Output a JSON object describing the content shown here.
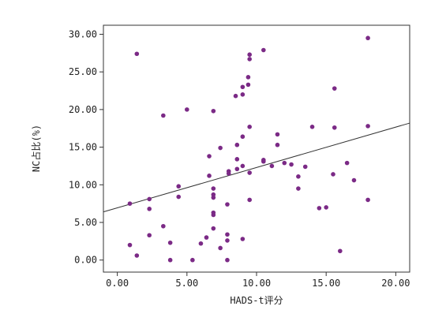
{
  "chart_data": {
    "type": "scatter",
    "title": "",
    "xlabel": "HADS-t评分",
    "ylabel": "NC占比(%)",
    "xlim": [
      -1.0,
      21.0
    ],
    "ylim": [
      -1.6,
      31.2
    ],
    "x_ticks": [
      0,
      5,
      10,
      15,
      20
    ],
    "x_tick_labels": [
      "0.00",
      "5.00",
      "10.00",
      "15.00",
      "20.00"
    ],
    "y_ticks": [
      0,
      5,
      10,
      15,
      20,
      25,
      30
    ],
    "y_tick_labels": [
      "0.00",
      "5.00",
      "10.00",
      "15.00",
      "20.00",
      "25.00",
      "30.00"
    ],
    "grid": false,
    "marker_color": "#7b2a86",
    "line_color": "#333333",
    "fit_line": {
      "x": [
        -1.0,
        21.0
      ],
      "y": [
        6.4,
        18.2
      ]
    },
    "points": [
      {
        "x": 1.4,
        "y": 27.4
      },
      {
        "x": 3.3,
        "y": 19.2
      },
      {
        "x": 5.0,
        "y": 20.0
      },
      {
        "x": 6.9,
        "y": 19.8
      },
      {
        "x": 10.5,
        "y": 27.9
      },
      {
        "x": 9.5,
        "y": 27.3
      },
      {
        "x": 9.5,
        "y": 26.7
      },
      {
        "x": 9.4,
        "y": 24.3
      },
      {
        "x": 9.4,
        "y": 23.3
      },
      {
        "x": 9.0,
        "y": 23.0
      },
      {
        "x": 9.0,
        "y": 22.0
      },
      {
        "x": 8.5,
        "y": 21.8
      },
      {
        "x": 18.0,
        "y": 29.5
      },
      {
        "x": 15.6,
        "y": 22.8
      },
      {
        "x": 9.5,
        "y": 17.7
      },
      {
        "x": 9.0,
        "y": 16.4
      },
      {
        "x": 7.4,
        "y": 14.9
      },
      {
        "x": 8.6,
        "y": 15.3
      },
      {
        "x": 6.6,
        "y": 13.8
      },
      {
        "x": 8.6,
        "y": 13.4
      },
      {
        "x": 9.0,
        "y": 12.5
      },
      {
        "x": 8.6,
        "y": 12.1
      },
      {
        "x": 8.0,
        "y": 11.8
      },
      {
        "x": 8.0,
        "y": 11.5
      },
      {
        "x": 9.5,
        "y": 11.6
      },
      {
        "x": 6.6,
        "y": 11.2
      },
      {
        "x": 10.5,
        "y": 13.3
      },
      {
        "x": 10.5,
        "y": 13.1
      },
      {
        "x": 11.1,
        "y": 12.5
      },
      {
        "x": 11.5,
        "y": 16.7
      },
      {
        "x": 11.5,
        "y": 15.3
      },
      {
        "x": 12.0,
        "y": 12.9
      },
      {
        "x": 12.5,
        "y": 12.7
      },
      {
        "x": 13.0,
        "y": 11.1
      },
      {
        "x": 13.0,
        "y": 9.5
      },
      {
        "x": 13.5,
        "y": 12.4
      },
      {
        "x": 14.0,
        "y": 17.7
      },
      {
        "x": 15.6,
        "y": 17.6
      },
      {
        "x": 15.5,
        "y": 11.4
      },
      {
        "x": 16.5,
        "y": 12.9
      },
      {
        "x": 17.0,
        "y": 10.6
      },
      {
        "x": 18.0,
        "y": 17.8
      },
      {
        "x": 18.0,
        "y": 8.0
      },
      {
        "x": 14.5,
        "y": 6.9
      },
      {
        "x": 15.0,
        "y": 7.0
      },
      {
        "x": 16.0,
        "y": 1.2
      },
      {
        "x": 0.9,
        "y": 7.5
      },
      {
        "x": 2.3,
        "y": 8.1
      },
      {
        "x": 2.3,
        "y": 6.8
      },
      {
        "x": 4.4,
        "y": 9.8
      },
      {
        "x": 4.4,
        "y": 8.4
      },
      {
        "x": 6.9,
        "y": 9.5
      },
      {
        "x": 6.9,
        "y": 8.7
      },
      {
        "x": 6.9,
        "y": 8.3
      },
      {
        "x": 6.9,
        "y": 6.3
      },
      {
        "x": 6.9,
        "y": 6.0
      },
      {
        "x": 6.9,
        "y": 4.2
      },
      {
        "x": 7.9,
        "y": 7.4
      },
      {
        "x": 9.5,
        "y": 8.0
      },
      {
        "x": 2.3,
        "y": 3.3
      },
      {
        "x": 3.3,
        "y": 4.5
      },
      {
        "x": 0.9,
        "y": 2.0
      },
      {
        "x": 1.4,
        "y": 0.6
      },
      {
        "x": 3.8,
        "y": 2.3
      },
      {
        "x": 3.8,
        "y": 0.0
      },
      {
        "x": 5.4,
        "y": 0.0
      },
      {
        "x": 6.0,
        "y": 2.2
      },
      {
        "x": 6.4,
        "y": 3.0
      },
      {
        "x": 7.4,
        "y": 1.6
      },
      {
        "x": 7.9,
        "y": 3.4
      },
      {
        "x": 7.9,
        "y": 2.6
      },
      {
        "x": 7.9,
        "y": 0.0
      },
      {
        "x": 9.0,
        "y": 2.8
      }
    ]
  }
}
